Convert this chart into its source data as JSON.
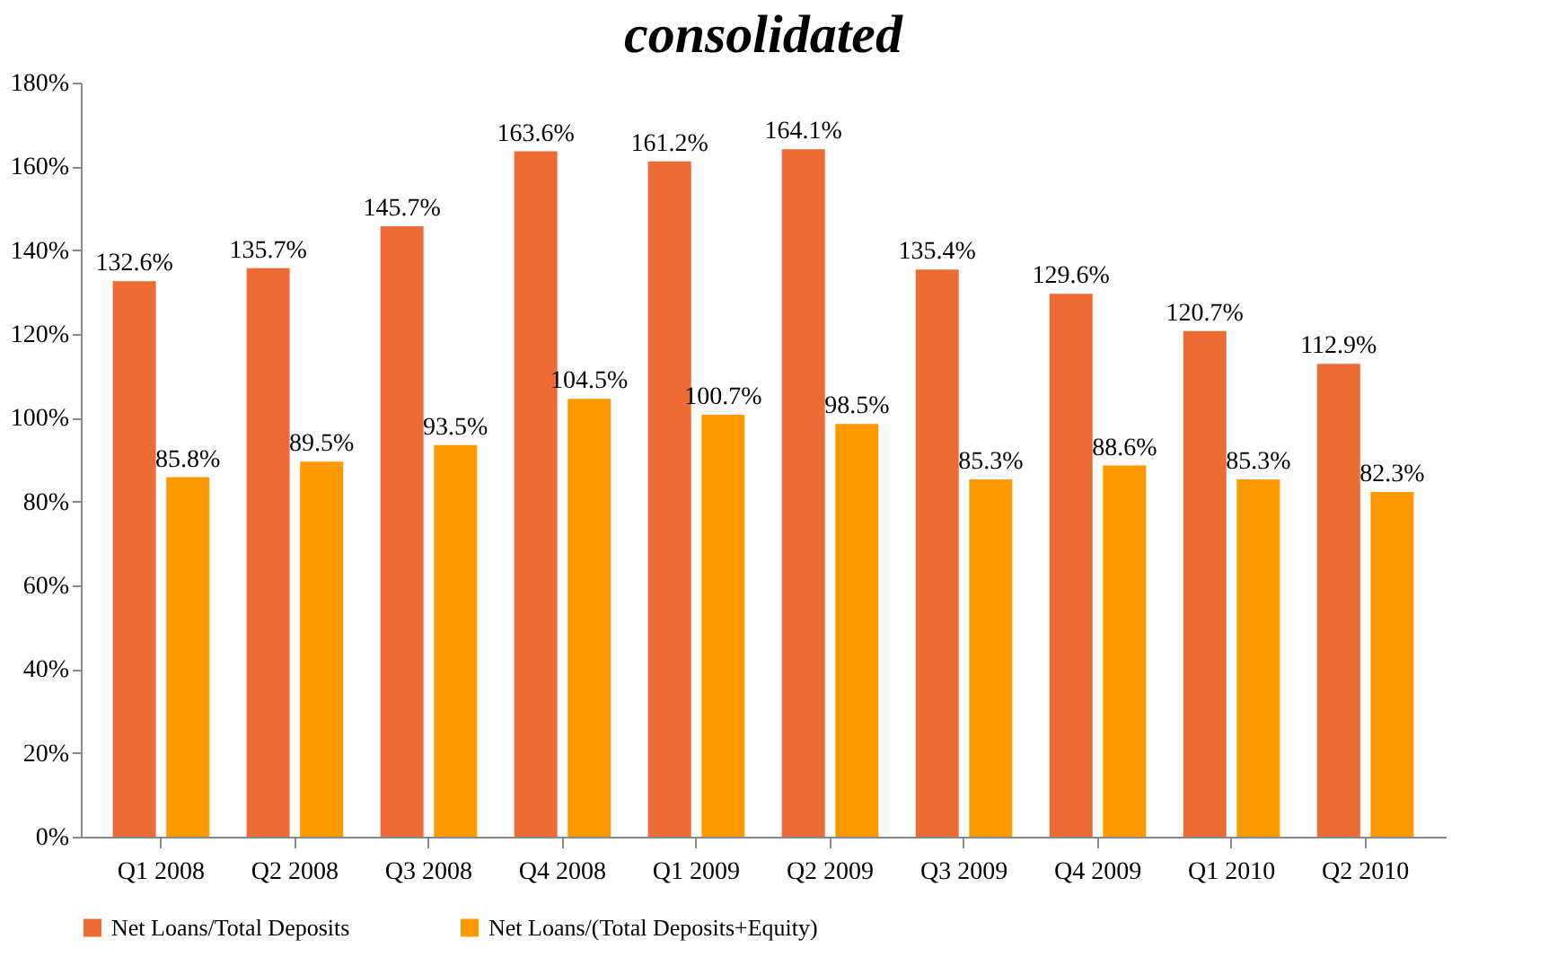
{
  "chart_data": {
    "type": "bar",
    "title": "consolidated",
    "categories": [
      "Q1 2008",
      "Q2 2008",
      "Q3 2008",
      "Q4 2008",
      "Q1 2009",
      "Q2 2009",
      "Q3 2009",
      "Q4 2009",
      "Q1 2010",
      "Q2 2010"
    ],
    "series": [
      {
        "name": "Net Loans/Total Deposits",
        "color": "#ed6b35",
        "values": [
          132.6,
          135.7,
          145.7,
          163.6,
          161.2,
          164.1,
          135.4,
          129.6,
          120.7,
          112.9
        ],
        "value_labels": [
          "132.6%",
          "135.7%",
          "145.7%",
          "163.6%",
          "161.2%",
          "164.1%",
          "135.4%",
          "129.6%",
          "120.7%",
          "112.9%"
        ]
      },
      {
        "name": "Net Loans/(Total Deposits+Equity)",
        "color": "#ff9900",
        "values": [
          85.8,
          89.5,
          93.5,
          104.5,
          100.7,
          98.5,
          85.3,
          88.6,
          85.3,
          82.3
        ],
        "value_labels": [
          "85.8%",
          "89.5%",
          "93.5%",
          "104.5%",
          "100.7%",
          "98.5%",
          "85.3%",
          "88.6%",
          "85.3%",
          "82.3%"
        ]
      }
    ],
    "ylim": [
      0,
      180
    ],
    "yticks": [
      {
        "value": 0,
        "label": "0%"
      },
      {
        "value": 20,
        "label": "20%"
      },
      {
        "value": 40,
        "label": "40%"
      },
      {
        "value": 60,
        "label": "60%"
      },
      {
        "value": 80,
        "label": "80%"
      },
      {
        "value": 100,
        "label": "100%"
      },
      {
        "value": 120,
        "label": "120%"
      },
      {
        "value": 140,
        "label": "140%"
      },
      {
        "value": 160,
        "label": "160%"
      },
      {
        "value": 180,
        "label": "180%"
      }
    ],
    "grid": false,
    "legend": "bottom"
  }
}
